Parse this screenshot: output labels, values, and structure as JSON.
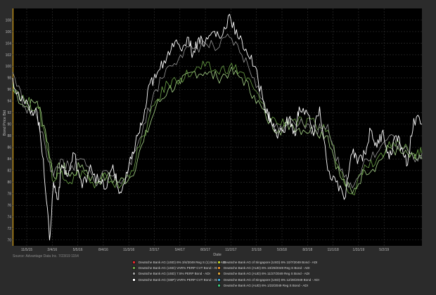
{
  "chart_data": {
    "type": "line",
    "title": "",
    "xlabel": "Date",
    "ylabel": "Bond Price Bid",
    "ylim": [
      69,
      110
    ],
    "x_ticks": [
      "11/5/15",
      "2/4/16",
      "5/5/16",
      "8/4/16",
      "11/3/16",
      "2/2/17",
      "5/4/17",
      "8/3/17",
      "11/2/17",
      "2/1/18",
      "5/3/18",
      "8/2/18",
      "11/1/18",
      "1/31/19",
      "5/2/19"
    ],
    "y_ticks": [
      70,
      72,
      74,
      76,
      78,
      80,
      82,
      84,
      86,
      88,
      90,
      92,
      94,
      96,
      98,
      100,
      102,
      104,
      106,
      108
    ],
    "grid": true,
    "source": "Source: Advantage Data Inc. 7/23/19 1154",
    "legend": [
      {
        "name": "Deutsche Bank AG (USD) 6% 3/4/2049 Reg S (1) Bond - ADI",
        "color": "#e0262b"
      },
      {
        "name": "Deutsche Bank AG of Singapore (USD) 6% 10/7/2049 Bond - ADI",
        "color": "#b6cc2a"
      },
      {
        "name": "Deutsche Bank AG (USD) VAR% PERP CVT Bond - ADI",
        "color": "#6da648"
      },
      {
        "name": "Deutsche Bank AG (AUD) 6% 10/29/2049 Reg S Bond - ADI",
        "color": "#e08a2a"
      },
      {
        "name": "Deutsche Bank AG (USD) 7.5% PERP Bond - ADI",
        "color": "#9a9a9a"
      },
      {
        "name": "Deutsche Bank AG (AUD) 6% 11/27/2049 Reg S Bond - ADI",
        "color": "#d9a23a"
      },
      {
        "name": "Deutsche Bank AG (GBP) VAR% PERP CVT Bond - ADI",
        "color": "#ffffff"
      },
      {
        "name": "Deutsche Bank AG of Singapore (USD) 6% 12/28/2049 Bond - ADI",
        "color": "#3aa6d8"
      },
      {
        "name": "",
        "color": ""
      },
      {
        "name": "Deutsche Bank AG (AUD) 6% 1/22/2049 Reg S Bond - ADI",
        "color": "#3cc47a"
      }
    ],
    "series": [
      {
        "name": "Deutsche Bank AG (GBP) VAR% PERP CVT Bond - ADI",
        "color": "#ffffff",
        "x": [
          0,
          0.02,
          0.04,
          0.06,
          0.075,
          0.09,
          0.1,
          0.11,
          0.12,
          0.135,
          0.15,
          0.17,
          0.19,
          0.21,
          0.23,
          0.245,
          0.26,
          0.275,
          0.29,
          0.305,
          0.32,
          0.335,
          0.35,
          0.37,
          0.39,
          0.41,
          0.43,
          0.44,
          0.455,
          0.47,
          0.49,
          0.51,
          0.53,
          0.55,
          0.57,
          0.59,
          0.61,
          0.62,
          0.63,
          0.645,
          0.66,
          0.675,
          0.69,
          0.7,
          0.72,
          0.735,
          0.75,
          0.77,
          0.79,
          0.81,
          0.83,
          0.845,
          0.86,
          0.875,
          0.89,
          0.905,
          0.92,
          0.935,
          0.95,
          0.965,
          0.98,
          1.0
        ],
        "y": [
          98,
          94,
          93,
          92,
          84,
          70,
          80,
          77,
          83,
          81,
          85,
          79,
          83,
          80,
          79,
          83,
          78,
          80,
          84,
          88,
          91,
          97,
          98,
          101,
          104,
          103,
          105,
          102,
          105,
          104,
          106,
          105,
          109,
          105,
          103,
          100,
          95,
          92,
          91,
          88,
          89,
          91,
          88,
          93,
          92,
          88,
          93,
          82,
          80,
          77,
          85,
          84,
          85,
          89,
          86,
          89,
          84,
          88,
          86,
          83,
          91,
          90
        ]
      },
      {
        "name": "Deutsche Bank AG (USD) 7.5% PERP Bond - ADI",
        "color": "#9a9a9a",
        "x": [
          0,
          0.03,
          0.06,
          0.08,
          0.1,
          0.12,
          0.14,
          0.17,
          0.2,
          0.23,
          0.26,
          0.29,
          0.32,
          0.35,
          0.38,
          0.41,
          0.44,
          0.47,
          0.5,
          0.53,
          0.56,
          0.59,
          0.62,
          0.65,
          0.68,
          0.71,
          0.74,
          0.77,
          0.8,
          0.83,
          0.86,
          0.89,
          0.92,
          0.95,
          0.98,
          1.0
        ],
        "y": [
          99,
          93,
          91,
          86,
          81,
          84,
          82,
          84,
          80,
          82,
          80,
          83,
          90,
          96,
          100,
          102,
          103,
          104,
          103,
          105,
          102,
          98,
          92,
          89,
          91,
          90,
          89,
          90,
          82,
          79,
          84,
          85,
          88,
          86,
          84,
          85
        ]
      },
      {
        "name": "Deutsche Bank AG (USD) VAR% PERP CVT Bond - ADI",
        "color": "#6da648",
        "x": [
          0,
          0.03,
          0.06,
          0.08,
          0.1,
          0.12,
          0.14,
          0.17,
          0.2,
          0.23,
          0.26,
          0.29,
          0.32,
          0.35,
          0.38,
          0.41,
          0.44,
          0.47,
          0.5,
          0.53,
          0.56,
          0.59,
          0.62,
          0.65,
          0.68,
          0.71,
          0.74,
          0.77,
          0.8,
          0.83,
          0.86,
          0.89,
          0.92,
          0.95,
          0.98,
          1.0
        ],
        "y": [
          97,
          94,
          93,
          88,
          80,
          82,
          80,
          82,
          79,
          81,
          79,
          82,
          88,
          94,
          97,
          98,
          99,
          100,
          99,
          100,
          99,
          96,
          92,
          90,
          91,
          90,
          90,
          89,
          82,
          78,
          83,
          84,
          87,
          86,
          85,
          85
        ]
      },
      {
        "name": "Deutsche Bank AG (AUD) 6% 1/22/2049 Reg S Bond - ADI",
        "color": "#a9d88a",
        "x": [
          0,
          0.03,
          0.06,
          0.08,
          0.1,
          0.12,
          0.14,
          0.17,
          0.2,
          0.23,
          0.26,
          0.29,
          0.32,
          0.35,
          0.38,
          0.41,
          0.44,
          0.47,
          0.5,
          0.53,
          0.56,
          0.59,
          0.62,
          0.65,
          0.68,
          0.71,
          0.74,
          0.77,
          0.8,
          0.83,
          0.86,
          0.89,
          0.92,
          0.95,
          0.98,
          1.0
        ],
        "y": [
          96,
          93,
          94,
          89,
          81,
          83,
          81,
          83,
          80,
          81,
          80,
          81,
          87,
          93,
          96,
          97,
          99,
          99,
          98,
          99,
          98,
          95,
          91,
          89,
          90,
          89,
          89,
          88,
          81,
          78,
          82,
          83,
          86,
          85,
          84,
          84
        ]
      }
    ]
  }
}
